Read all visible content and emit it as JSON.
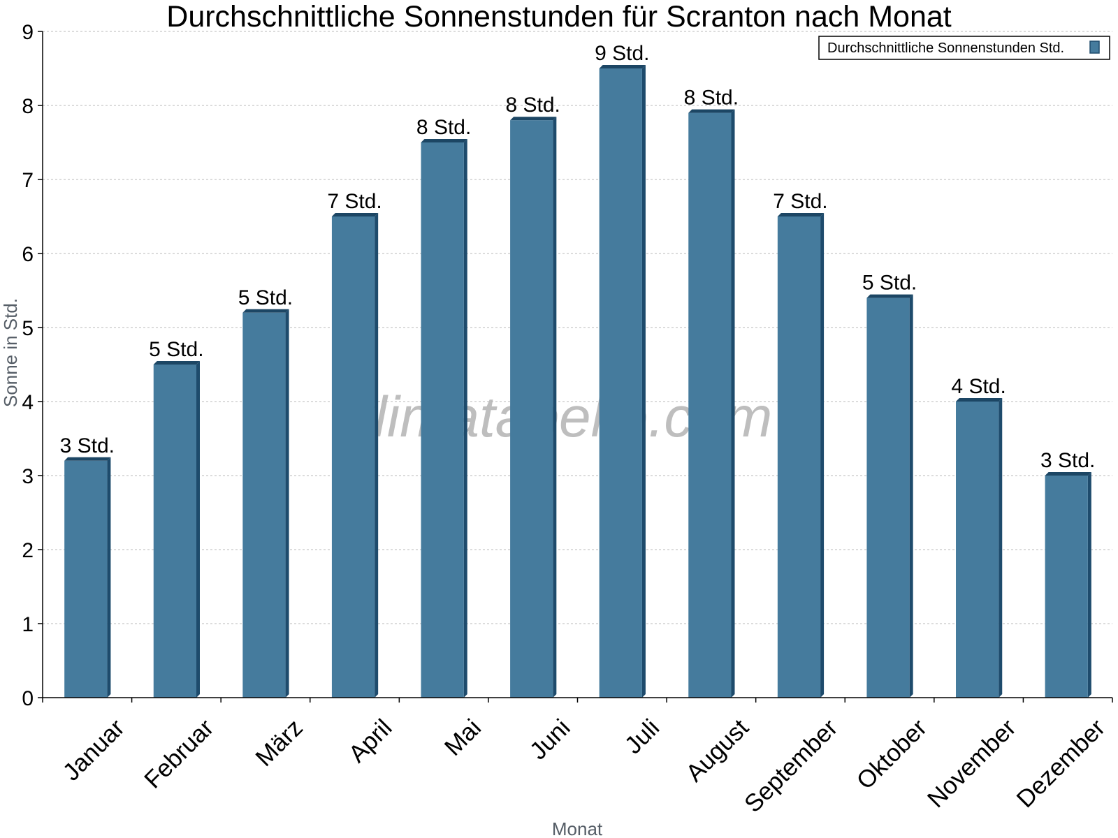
{
  "colors": {
    "bar_front": "#457b9d",
    "bar_side": "#1e4b6c",
    "bar_top": "#1c4664",
    "grid": "#c8c8c8",
    "axis": "#000000"
  },
  "watermark": "klimatabelle.com",
  "chart_data": {
    "type": "bar",
    "title": "Durchschnittliche Sonnenstunden für Scranton nach Monat",
    "xlabel": "Monat",
    "ylabel": "Sonne in Std.",
    "ylim": [
      0,
      9
    ],
    "yticks": [
      "0",
      "1",
      "2",
      "3",
      "4",
      "5",
      "6",
      "7",
      "8",
      "9"
    ],
    "grid": true,
    "legend_position": "top-right",
    "categories": [
      "Januar",
      "Februar",
      "März",
      "April",
      "Mai",
      "Juni",
      "Juli",
      "August",
      "September",
      "Oktober",
      "November",
      "Dezember"
    ],
    "series": [
      {
        "name": "Durchschnittliche Sonnenstunden Std.",
        "values": [
          3.2,
          4.5,
          5.2,
          6.5,
          7.5,
          7.8,
          8.5,
          7.9,
          6.5,
          5.4,
          4.0,
          3.0
        ],
        "labels": [
          "3 Std.",
          "5 Std.",
          "5 Std.",
          "7 Std.",
          "8 Std.",
          "8 Std.",
          "9 Std.",
          "8 Std.",
          "7 Std.",
          "5 Std.",
          "4 Std.",
          "3 Std."
        ]
      }
    ]
  }
}
